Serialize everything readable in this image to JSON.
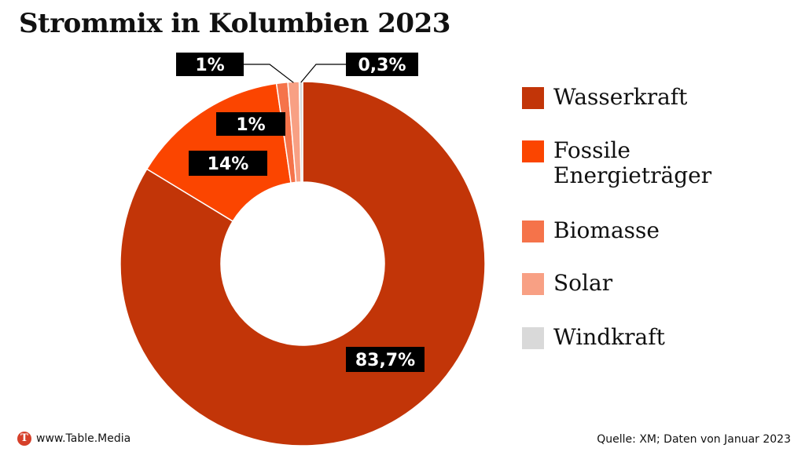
{
  "title": "Strommix in Kolumbien 2023",
  "chart_data": {
    "type": "pie",
    "donut": true,
    "title": "Strommix in Kolumbien 2023",
    "legend_position": "right",
    "categories": [
      "Wasserkraft",
      "Fossile Energieträger",
      "Biomasse",
      "Solar",
      "Windkraft"
    ],
    "values": [
      83.7,
      14,
      1,
      1,
      0.3
    ],
    "data_labels": [
      "83,7%",
      "14%",
      "1%",
      "1%",
      "0,3%"
    ],
    "colors": [
      "#c23508",
      "#fb4500",
      "#f5734a",
      "#f8a084",
      "#d9d9d9"
    ]
  },
  "legend": {
    "items": [
      {
        "label": "Wasserkraft",
        "color": "#c23508"
      },
      {
        "label": "Fossile\nEnergieträger",
        "color": "#fb4500"
      },
      {
        "label": "Biomasse",
        "color": "#f5734a"
      },
      {
        "label": "Solar",
        "color": "#f8a084"
      },
      {
        "label": "Windkraft",
        "color": "#d9d9d9"
      }
    ]
  },
  "footer": {
    "logo_letter": "T",
    "brand": "www.Table.Media",
    "source": "Quelle: XM; Daten von Januar 2023"
  }
}
